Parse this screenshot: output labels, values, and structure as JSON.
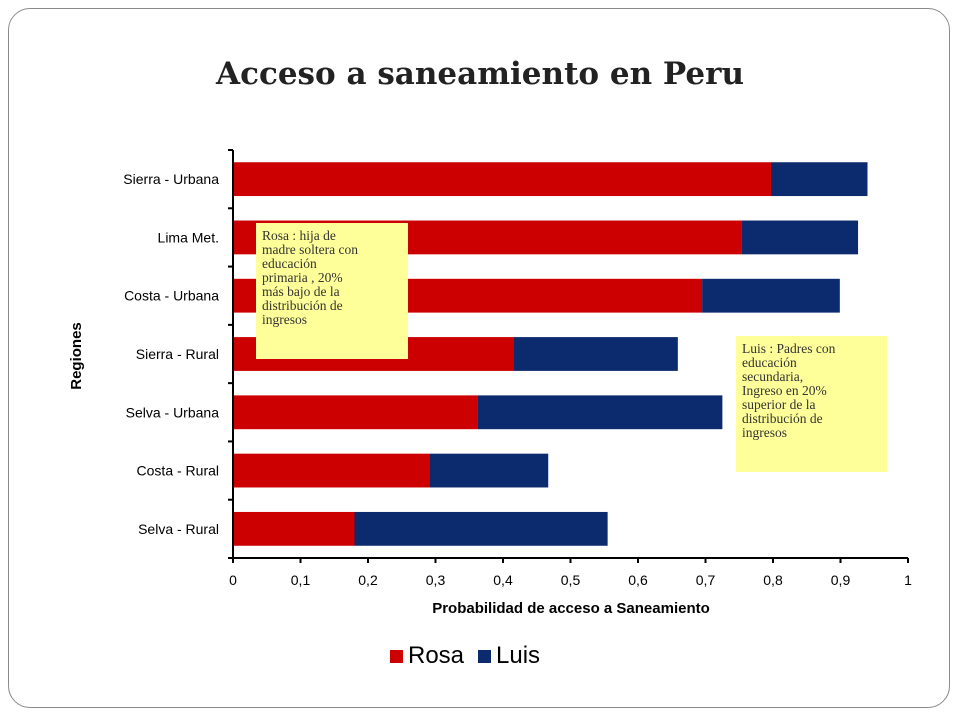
{
  "chart_data": {
    "type": "bar",
    "orientation": "horizontal",
    "stacked": true,
    "title": "Acceso a saneamiento en Peru",
    "xlabel": "Probabilidad de acceso a Saneamiento",
    "ylabel": "Regiones",
    "xlim": [
      0,
      1
    ],
    "xticks": [
      "0",
      "0,1",
      "0,2",
      "0,3",
      "0,4",
      "0,5",
      "0,6",
      "0,7",
      "0,8",
      "0,9",
      "1"
    ],
    "categories": [
      "Sierra - Urbana",
      "Lima Met.",
      "Costa - Urbana",
      "Sierra - Rural",
      "Selva - Urbana",
      "Costa - Rural",
      "Selva - Rural"
    ],
    "series": [
      {
        "name": "Rosa",
        "color": "#cc0000",
        "values": [
          0.797,
          0.754,
          0.695,
          0.415,
          0.362,
          0.291,
          0.18
        ]
      },
      {
        "name": "Luis",
        "color": "#0c2a6e",
        "values": [
          0.143,
          0.172,
          0.204,
          0.244,
          0.363,
          0.176,
          0.375
        ]
      }
    ],
    "grid": false,
    "legend_position": "bottom",
    "annotations": [
      "Rosa : hija de madre soltera con educación primaria , 20% más bajo de la distribución de ingresos",
      "Luis : Padres con educación secundaria, Ingreso en 20% superior de la distribución de ingresos"
    ]
  },
  "notes": {
    "rosa": "Rosa : hija de\nmadre soltera con\neducación\nprimaria , 20%\nmás bajo de la\ndistribución de\ningresos",
    "luis": "Luis : Padres con\neducación\nsecundaria,\nIngreso en 20%\nsuperior de la\ndistribución de\ningresos"
  },
  "legend": {
    "rosa": "Rosa",
    "luis": "Luis"
  }
}
